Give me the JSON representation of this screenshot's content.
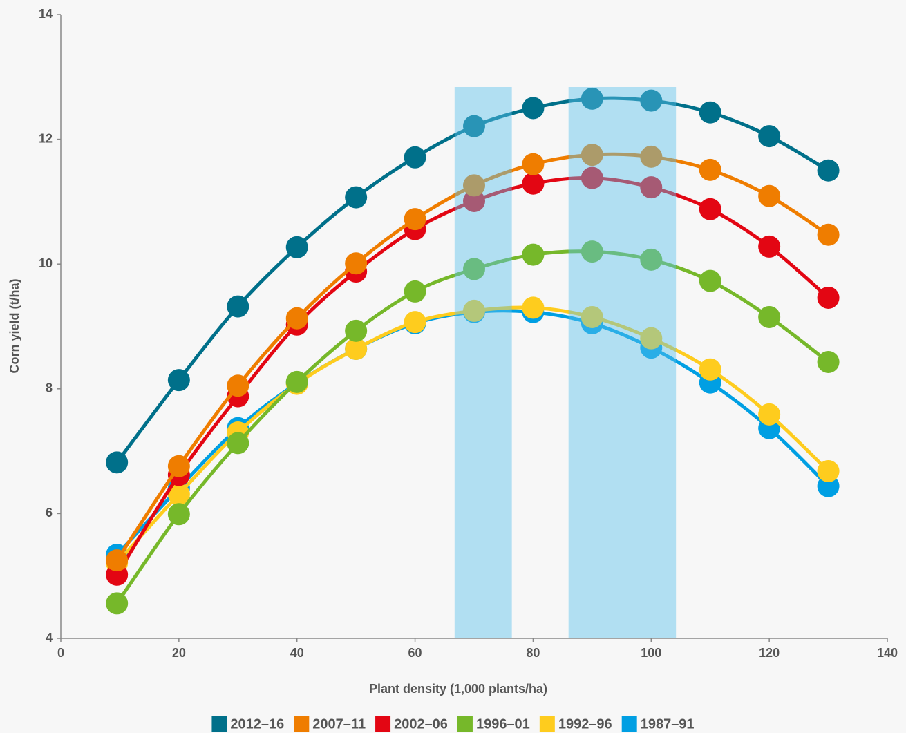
{
  "chart_data": {
    "type": "line",
    "x_label": "Plant density (1,000 plants/ha)",
    "y_label": "Corn yield (t/ha)",
    "x": [
      9.5,
      20,
      30,
      40,
      50,
      60,
      70,
      80,
      90,
      100,
      110,
      120,
      130
    ],
    "series": [
      {
        "name": "2012–16",
        "color": "#00708a",
        "values": [
          6.82,
          8.14,
          9.32,
          10.27,
          11.07,
          11.71,
          12.21,
          12.5,
          12.65,
          12.62,
          12.43,
          12.05,
          11.5
        ]
      },
      {
        "name": "2007–11",
        "color": "#ef7d00",
        "values": [
          5.25,
          6.76,
          8.05,
          9.13,
          10.01,
          10.72,
          11.26,
          11.6,
          11.75,
          11.72,
          11.51,
          11.09,
          10.47
        ]
      },
      {
        "name": "2002–06",
        "color": "#e30613",
        "values": [
          5.02,
          6.62,
          7.88,
          9.03,
          9.88,
          10.56,
          11.01,
          11.29,
          11.38,
          11.23,
          10.88,
          10.28,
          9.46
        ]
      },
      {
        "name": "1996–01",
        "color": "#76b82a",
        "values": [
          4.56,
          5.99,
          7.13,
          8.11,
          8.93,
          9.56,
          9.92,
          10.15,
          10.2,
          10.07,
          9.73,
          9.15,
          8.43
        ]
      },
      {
        "name": "1992–96",
        "color": "#fecc1e",
        "values": [
          5.21,
          6.31,
          7.3,
          8.08,
          8.64,
          9.07,
          9.25,
          9.3,
          9.15,
          8.81,
          8.31,
          7.59,
          6.68
        ]
      },
      {
        "name": "1987–91",
        "color": "#009fe3",
        "values": [
          5.34,
          6.41,
          7.37,
          8.09,
          8.64,
          9.05,
          9.23,
          9.23,
          9.05,
          8.66,
          8.1,
          7.37,
          6.44
        ]
      }
    ],
    "highlight_bands": [
      [
        66.7,
        76.4
      ],
      [
        86,
        104.2
      ]
    ],
    "highlight_color": "#5bc0eb",
    "xlim": [
      0,
      140
    ],
    "xticks": [
      0,
      20,
      40,
      60,
      80,
      100,
      120,
      140
    ],
    "ylim": [
      4,
      14
    ],
    "yticks": [
      4,
      6,
      8,
      10,
      12,
      14
    ],
    "grid": false,
    "legend": "bottom"
  }
}
